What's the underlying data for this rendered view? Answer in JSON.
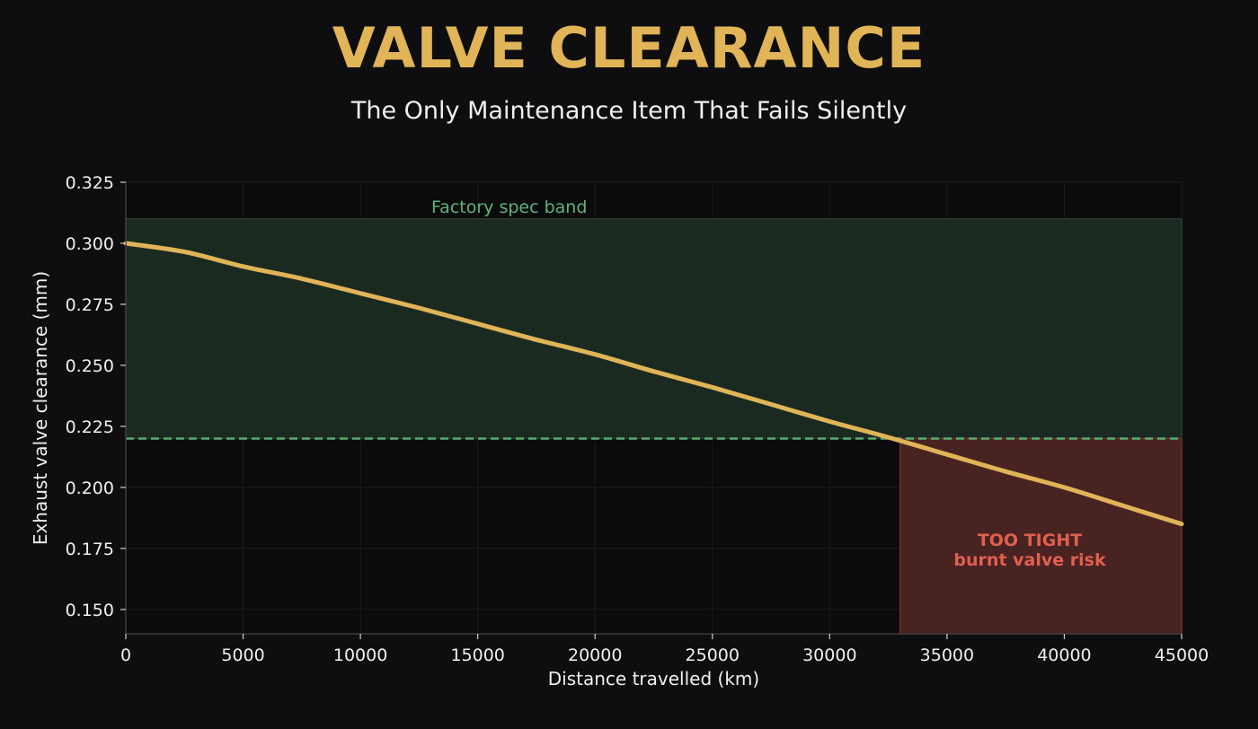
{
  "header": {
    "title": "VALVE CLEARANCE",
    "subtitle": "The Only Maintenance Item That Fails Silently"
  },
  "colors": {
    "background": "#0e0e10",
    "plot_background": "#0b0b0d",
    "title": "#e0b457",
    "line": "#e0b457",
    "spec_band_fill": "#1b2a21",
    "spec_band_edge": "#2a3a2f",
    "spec_limit_line": "#5aab72",
    "spec_label": "#5fb37b",
    "risk_fill": "#482322",
    "risk_edge": "#6b302c",
    "risk_label": "#e06050",
    "grid": "#1c1c1f",
    "axis": "#3a3a3e"
  },
  "chart_data": {
    "type": "line",
    "title": "VALVE CLEARANCE",
    "subtitle": "The Only Maintenance Item That Fails Silently",
    "xlabel": "Distance travelled (km)",
    "ylabel": "Exhaust valve clearance (mm)",
    "xlim": [
      0,
      45000
    ],
    "ylim": [
      0.14,
      0.325
    ],
    "xticks": [
      0,
      5000,
      10000,
      15000,
      20000,
      25000,
      30000,
      35000,
      40000,
      45000
    ],
    "xtick_labels": [
      "0",
      "5000",
      "10000",
      "15000",
      "20000",
      "25000",
      "30000",
      "35000",
      "40000",
      "45000"
    ],
    "yticks": [
      0.15,
      0.175,
      0.2,
      0.225,
      0.25,
      0.275,
      0.3,
      0.325
    ],
    "ytick_labels": [
      "0.150",
      "0.175",
      "0.200",
      "0.225",
      "0.250",
      "0.275",
      "0.300",
      "0.325"
    ],
    "grid": true,
    "series": [
      {
        "x": [
          0,
          2500,
          5000,
          7500,
          10000,
          12500,
          15000,
          17500,
          20000,
          22500,
          25000,
          27500,
          30000,
          32500,
          35000,
          37500,
          40000,
          42500,
          45000
        ],
        "y": [
          0.3,
          0.2965,
          0.2905,
          0.2855,
          0.2795,
          0.2735,
          0.267,
          0.2605,
          0.2545,
          0.2475,
          0.241,
          0.234,
          0.227,
          0.2205,
          0.2135,
          0.2065,
          0.2,
          0.1925,
          0.185
        ]
      }
    ],
    "spec_band": {
      "y_low": 0.22,
      "y_high": 0.31,
      "label": "Factory spec band"
    },
    "spec_min_line": 0.22,
    "risk_zone": {
      "x_start": 33000,
      "x_end": 45000,
      "y_low": 0.14,
      "y_high": 0.22,
      "label_line1": "TOO TIGHT",
      "label_line2": "burnt valve risk"
    }
  }
}
